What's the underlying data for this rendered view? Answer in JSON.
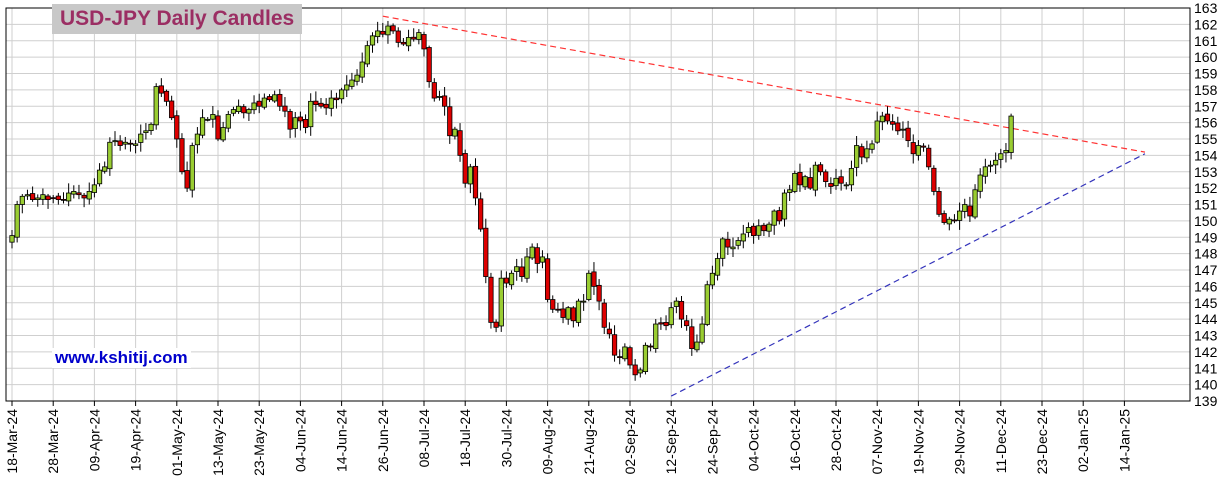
{
  "chart_data": {
    "type": "candlestick",
    "title": "USD-JPY Daily Candles",
    "watermark": "www.kshitij.com",
    "ylim": [
      139,
      163
    ],
    "y_ticks": [
      139,
      140,
      141,
      142,
      143,
      144,
      145,
      146,
      147,
      148,
      149,
      150,
      151,
      152,
      153,
      154,
      155,
      156,
      157,
      158,
      159,
      160,
      161,
      162,
      163
    ],
    "x_tick_labels": [
      "18-Mar-24",
      "28-Mar-24",
      "09-Apr-24",
      "19-Apr-24",
      "01-May-24",
      "13-May-24",
      "23-May-24",
      "04-Jun-24",
      "14-Jun-24",
      "26-Jun-24",
      "08-Jul-24",
      "18-Jul-24",
      "30-Jul-24",
      "09-Aug-24",
      "21-Aug-24",
      "02-Sep-24",
      "12-Sep-24",
      "24-Sep-24",
      "04-Oct-24",
      "16-Oct-24",
      "28-Oct-24",
      "07-Nov-24",
      "19-Nov-24",
      "29-Nov-24",
      "11-Dec-24",
      "23-Dec-24",
      "02-Jan-25",
      "14-Jan-25"
    ],
    "x_tick_index": [
      0,
      8,
      16,
      24,
      32,
      40,
      48,
      56,
      64,
      72,
      80,
      88,
      96,
      104,
      112,
      120,
      128,
      136,
      144,
      152,
      160,
      168,
      176,
      184,
      192,
      200,
      208,
      216
    ],
    "start_date": "2024-03-18",
    "last_date": "2024-12-18",
    "colors": {
      "up": "#9acd32",
      "down": "#dd0000",
      "upper_trendline": "#ff3333",
      "lower_trendline": "#3333bb"
    },
    "grid": true,
    "trendlines": [
      {
        "name": "upper",
        "from": [
          72,
          162.5
        ],
        "to": [
          220,
          154.2
        ],
        "style": "dashed"
      },
      {
        "name": "lower",
        "from": [
          128,
          139.3
        ],
        "to": [
          220,
          154.1
        ],
        "style": "dashed"
      }
    ],
    "closes": [
      149.1,
      151.0,
      151.5,
      151.6,
      151.3,
      151.4,
      151.6,
      151.3,
      151.4,
      151.3,
      151.3,
      151.7,
      151.8,
      151.6,
      151.4,
      151.8,
      152.2,
      153.1,
      153.3,
      154.8,
      154.9,
      154.6,
      154.8,
      154.7,
      154.7,
      155.3,
      155.5,
      155.9,
      158.2,
      157.8,
      157.3,
      156.3,
      155.0,
      153.0,
      152.0,
      154.6,
      155.3,
      156.3,
      156.2,
      156.5,
      155.0,
      155.7,
      156.5,
      156.8,
      157.0,
      156.6,
      156.8,
      157.2,
      157.0,
      157.5,
      157.4,
      157.7,
      157.0,
      156.7,
      155.6,
      156.3,
      156.1,
      155.7,
      157.3,
      157.1,
      157.0,
      156.9,
      157.5,
      157.4,
      158.0,
      158.3,
      158.6,
      158.9,
      159.7,
      160.7,
      161.3,
      161.6,
      161.4,
      161.9,
      161.6,
      160.9,
      160.8,
      161.2,
      161.1,
      161.5,
      160.5,
      158.5,
      157.5,
      157.6,
      157.0,
      155.2,
      155.6,
      154.0,
      152.3,
      153.3,
      151.4,
      149.5,
      146.6,
      143.8,
      143.5,
      146.5,
      146.2,
      146.8,
      147.2,
      146.6,
      147.8,
      148.4,
      147.4,
      147.8,
      145.2,
      144.6,
      144.6,
      144.1,
      144.7,
      143.9,
      145.1,
      145.1,
      146.8,
      146.0,
      145.1,
      143.5,
      143.1,
      141.8,
      141.7,
      142.3,
      141.2,
      140.6,
      140.9,
      142.4,
      142.3,
      143.7,
      143.7,
      143.6,
      144.7,
      145.1,
      144.0,
      143.6,
      142.2,
      142.6,
      143.7,
      146.1,
      146.8,
      147.7,
      148.9,
      148.4,
      148.4,
      148.8,
      149.2,
      149.6,
      149.1,
      149.7,
      149.4,
      149.8,
      150.6,
      150.0,
      151.7,
      151.9,
      152.9,
      152.2,
      152.7,
      152.0,
      153.4,
      153.0,
      152.4,
      152.1,
      152.6,
      152.3,
      152.2,
      153.2,
      154.6,
      153.9,
      154.4,
      154.7,
      156.1,
      156.4,
      156.1,
      155.9,
      155.5,
      155.6,
      154.9,
      154.1,
      154.6,
      154.5,
      153.3,
      151.8,
      150.4,
      149.9,
      150.1,
      150.0,
      150.6,
      151.0,
      150.3,
      151.9,
      152.8,
      153.3,
      153.4,
      153.7,
      154.1,
      154.3,
      156.4
    ]
  }
}
